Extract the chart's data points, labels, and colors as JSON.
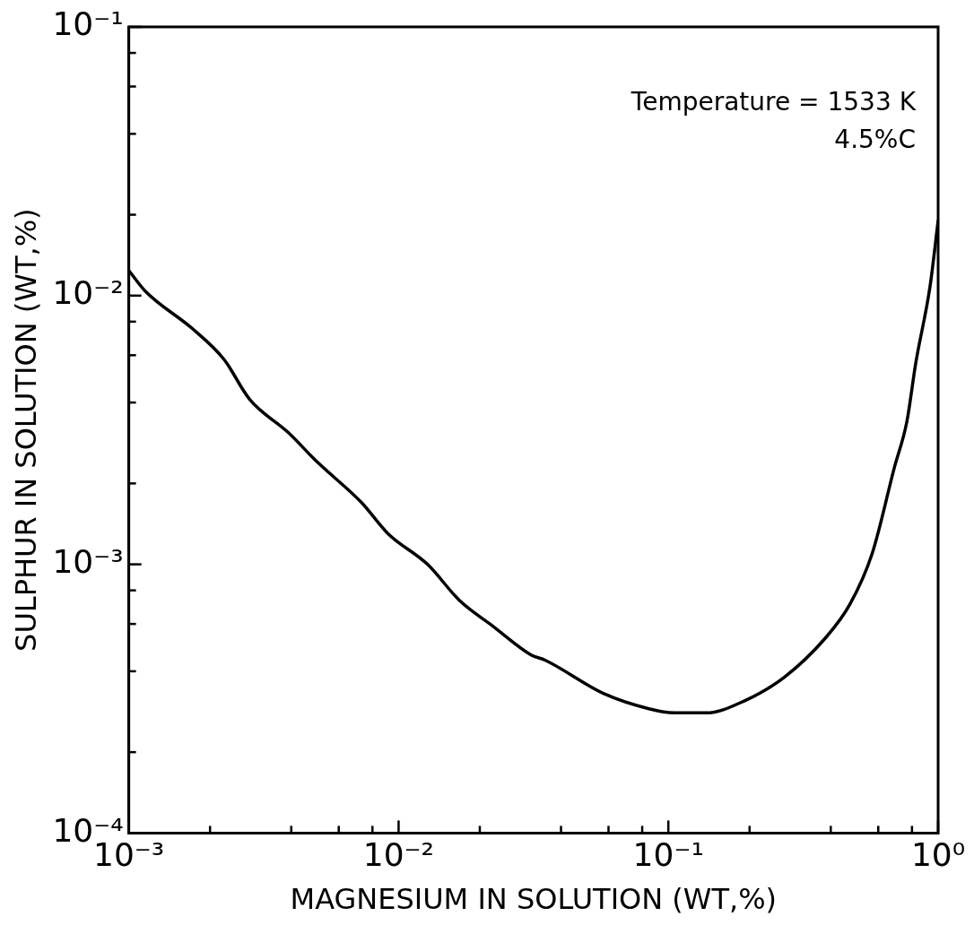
{
  "chart_data": {
    "type": "line",
    "xlabel": "MAGNESIUM IN SOLUTION (WT,%)",
    "ylabel": "SULPHUR IN SOLUTION (WT,%)",
    "log": "xy",
    "grid": false,
    "legend": false,
    "marker": "none",
    "line_style": "solid",
    "annotations": [
      "Temperature = 1533 K",
      "4.5%C"
    ],
    "xlim": [
      0.001,
      1
    ],
    "ylim": [
      0.0001,
      0.1
    ],
    "xticks": [
      {
        "value": 0.001,
        "label": "10⁻³"
      },
      {
        "value": 0.002,
        "label": null
      },
      {
        "value": 0.004,
        "label": null
      },
      {
        "value": 0.006,
        "label": null
      },
      {
        "value": 0.008,
        "label": null
      },
      {
        "value": 0.01,
        "label": "10⁻²"
      },
      {
        "value": 0.02,
        "label": null
      },
      {
        "value": 0.04,
        "label": null
      },
      {
        "value": 0.06,
        "label": null
      },
      {
        "value": 0.08,
        "label": null
      },
      {
        "value": 0.1,
        "label": "10⁻¹"
      },
      {
        "value": 0.2,
        "label": null
      },
      {
        "value": 0.4,
        "label": null
      },
      {
        "value": 0.6,
        "label": null
      },
      {
        "value": 0.8,
        "label": null
      },
      {
        "value": 1,
        "label": "10⁰"
      }
    ],
    "yticks": [
      {
        "value": 0.0001,
        "label": "10⁻⁴"
      },
      {
        "value": 0.0002,
        "label": null
      },
      {
        "value": 0.0004,
        "label": null
      },
      {
        "value": 0.0006,
        "label": null
      },
      {
        "value": 0.0008,
        "label": null
      },
      {
        "value": 0.001,
        "label": "10⁻³"
      },
      {
        "value": 0.002,
        "label": null
      },
      {
        "value": 0.004,
        "label": null
      },
      {
        "value": 0.006,
        "label": null
      },
      {
        "value": 0.008,
        "label": null
      },
      {
        "value": 0.01,
        "label": "10⁻²"
      },
      {
        "value": 0.02,
        "label": null
      },
      {
        "value": 0.04,
        "label": null
      },
      {
        "value": 0.06,
        "label": null
      },
      {
        "value": 0.08,
        "label": null
      },
      {
        "value": 0.1,
        "label": "10⁻¹"
      }
    ],
    "series": [
      {
        "color": "#000000",
        "x": [
          0.001,
          0.00115,
          0.00173,
          0.00225,
          0.00281,
          0.00389,
          0.005,
          0.00728,
          0.00914,
          0.0128,
          0.0169,
          0.0223,
          0.031,
          0.0349,
          0.0577,
          0.0847,
          0.105,
          0.138,
          0.191,
          0.269,
          0.381,
          0.471,
          0.57,
          0.689,
          0.766,
          0.826,
          0.933,
          1
        ],
        "values": [
          0.0124,
          0.0104,
          0.0075,
          0.0058,
          0.0041,
          0.0031,
          0.0024,
          0.0017,
          0.0013,
          0.001,
          0.00073,
          0.00059,
          0.00046,
          0.00044,
          0.00033,
          0.00029,
          0.00028,
          0.00028,
          0.00031,
          0.00038,
          0.00053,
          0.00071,
          0.0011,
          0.0023,
          0.0034,
          0.0056,
          0.0108,
          0.019
        ]
      }
    ]
  }
}
